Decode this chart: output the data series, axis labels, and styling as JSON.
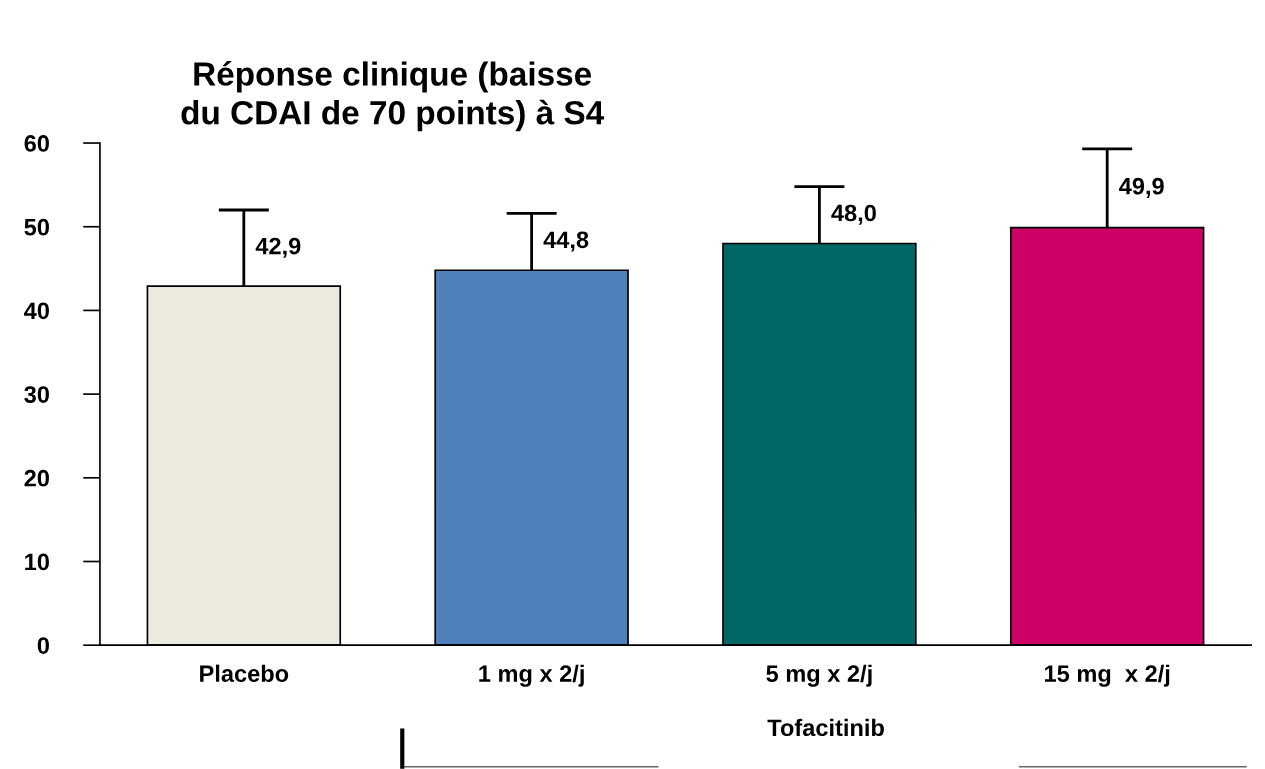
{
  "chart_data": {
    "type": "bar",
    "title": "Réponse clinique (baisse\ndu CDAI de 70 points) à S4",
    "categories": [
      "Placebo",
      "1 mg x 2/j",
      "5 mg x 2/j",
      "15 mg  x 2/j"
    ],
    "values": [
      42.9,
      44.8,
      48.0,
      49.9
    ],
    "colors": [
      "#ece9df",
      "#4f81bd",
      "#006666",
      "#cc0066"
    ],
    "errors": [
      9.1,
      6.8,
      6.8,
      9.4
    ],
    "value_labels": [
      "42,9",
      "44,8",
      "48,0",
      "49,9"
    ],
    "ylim": [
      0,
      60
    ],
    "yticks": [
      0,
      10,
      20,
      30,
      40,
      50,
      60
    ],
    "grid": false,
    "legend": false,
    "annotations": [
      "Tofacitinib"
    ]
  }
}
